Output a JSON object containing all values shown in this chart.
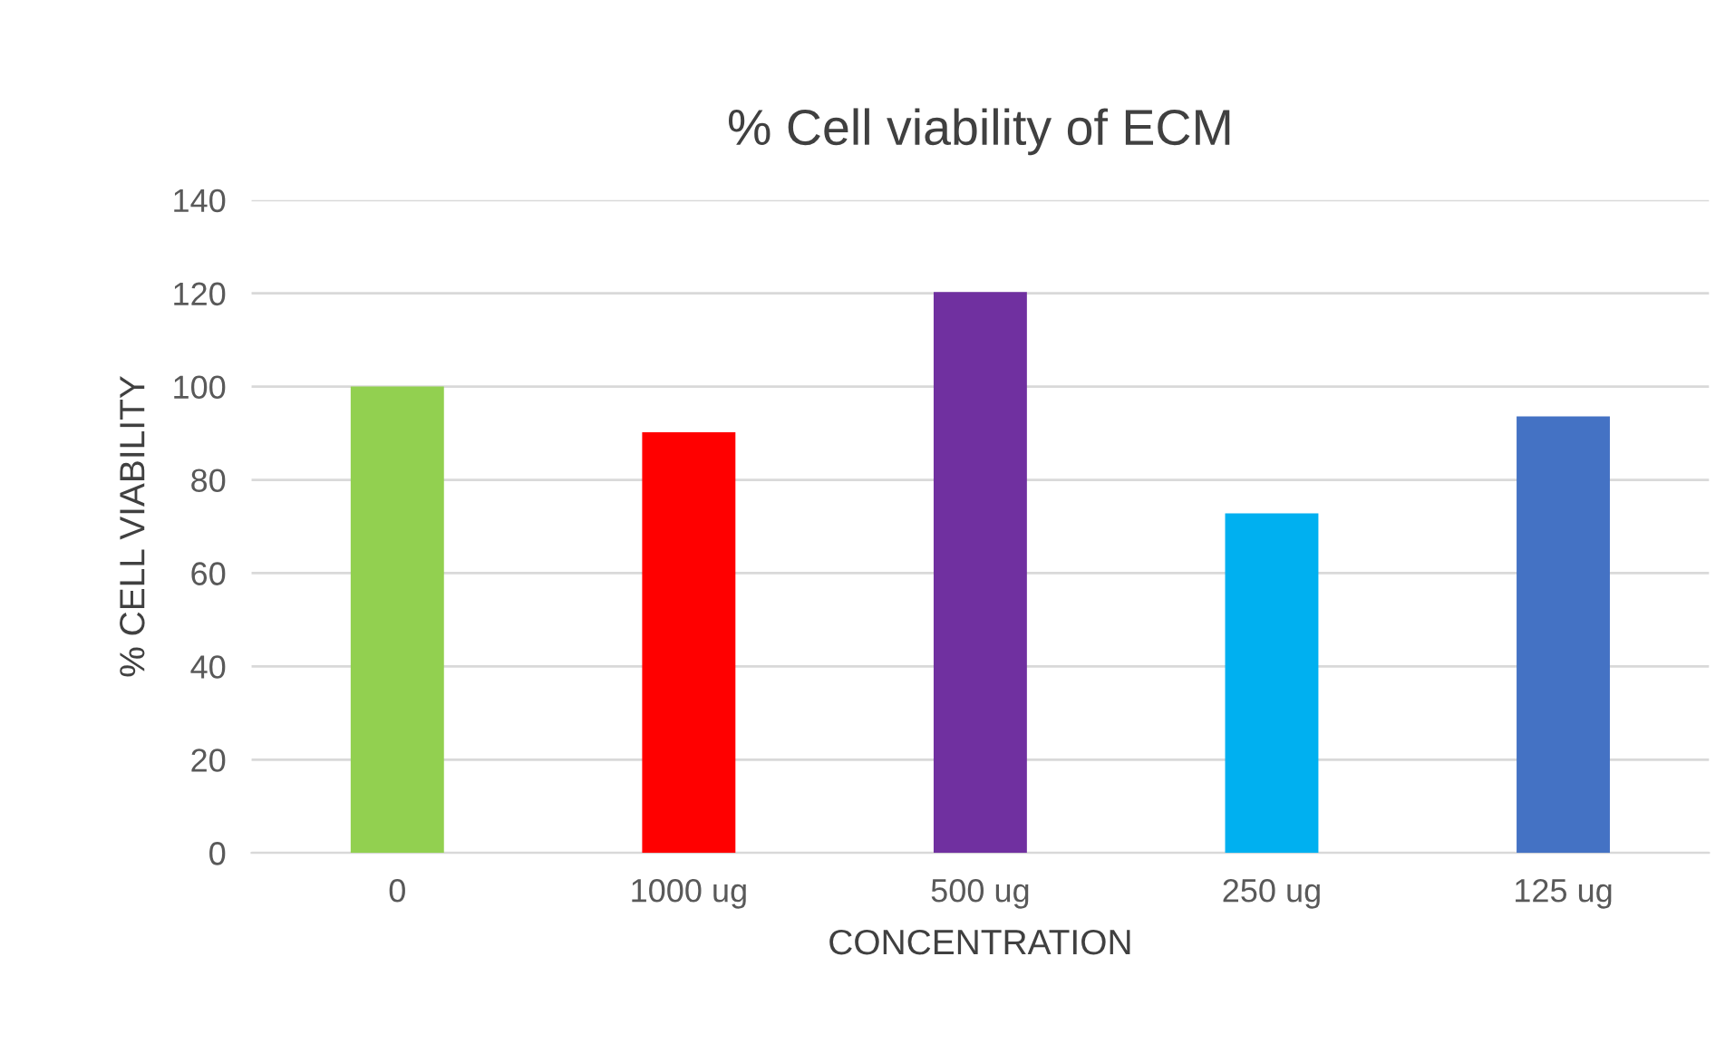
{
  "chart_data": {
    "type": "bar",
    "title": "% Cell viability of ECM",
    "xlabel": "CONCENTRATION",
    "ylabel": "% CELL VIABILITY",
    "categories": [
      "0",
      "1000 ug",
      "500 ug",
      "250 ug",
      "125 ug"
    ],
    "values": [
      100,
      90.2,
      120.3,
      72.8,
      93.6
    ],
    "colors": [
      "#92d050",
      "#ff0000",
      "#7030a0",
      "#00b0f0",
      "#4472c4"
    ],
    "ylim": [
      0,
      140
    ],
    "yticks": [
      0,
      20,
      40,
      60,
      80,
      100,
      120,
      140
    ],
    "grid": "y",
    "legend": false
  }
}
